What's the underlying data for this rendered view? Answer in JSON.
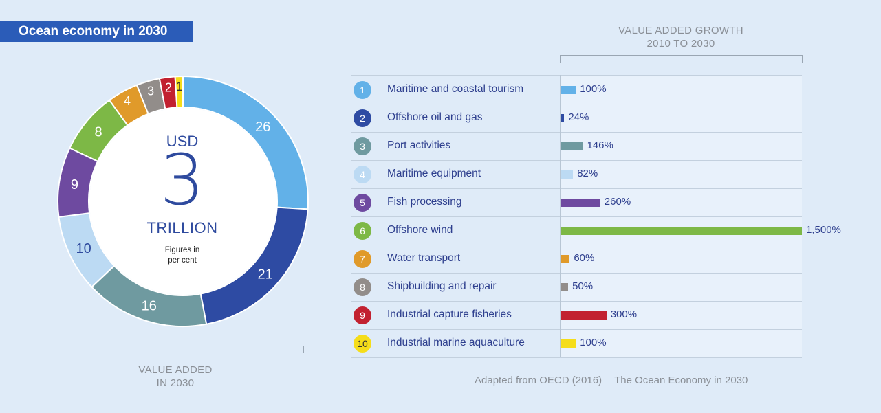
{
  "title": "Ocean economy in 2030",
  "donut_center": {
    "currency": "USD",
    "amount": "3",
    "unit": "TRILLION",
    "note_line1": "Figures in",
    "note_line2": "per cent"
  },
  "left_caption": {
    "line1": "VALUE ADDED",
    "line2": "IN 2030"
  },
  "right_caption": {
    "line1": "VALUE ADDED GROWTH",
    "line2": "2010 TO 2030"
  },
  "source": {
    "part1": "Adapted from OECD (2016)",
    "part2": "The Ocean Economy in 2030"
  },
  "chart_data": [
    {
      "type": "pie",
      "title": "Value added in 2030",
      "subtitle": "USD 3 trillion, figures in per cent",
      "categories": [
        "Maritime and coastal tourism",
        "Offshore oil and gas",
        "Port activities",
        "Maritime equipment",
        "Fish processing",
        "Offshore wind",
        "Water transport",
        "Shipbuilding and repair",
        "Industrial capture fisheries",
        "Industrial marine aquaculture"
      ],
      "values": [
        26,
        21,
        16,
        10,
        9,
        8,
        4,
        3,
        2,
        1
      ],
      "colors": [
        "#62b1e8",
        "#2e4ba3",
        "#6f9aa0",
        "#bcdaf3",
        "#6e4aa0",
        "#7db846",
        "#e09a2a",
        "#928d8a",
        "#c22130",
        "#f5dd1a"
      ],
      "label_colors": [
        "#ffffff",
        "#ffffff",
        "#ffffff",
        "#2e4a9e",
        "#ffffff",
        "#ffffff",
        "#ffffff",
        "#ffffff",
        "#ffffff",
        "#333333"
      ]
    },
    {
      "type": "bar",
      "title": "Value added growth 2010 to 2030",
      "categories": [
        "Maritime and coastal tourism",
        "Offshore oil and gas",
        "Port activities",
        "Maritime equipment",
        "Fish processing",
        "Offshore wind",
        "Water transport",
        "Shipbuilding and repair",
        "Industrial capture fisheries",
        "Industrial marine aquaculture"
      ],
      "values": [
        100,
        24,
        146,
        82,
        260,
        1500,
        60,
        50,
        300,
        100
      ],
      "value_labels": [
        "100%",
        "24%",
        "146%",
        "82%",
        "260%",
        "1,500%",
        "60%",
        "50%",
        "300%",
        "100%"
      ],
      "xlim": [
        0,
        1500
      ]
    }
  ],
  "rows": [
    {
      "num": "1",
      "label": "Maritime and coastal tourism",
      "value": "100%"
    },
    {
      "num": "2",
      "label": "Offshore oil and gas",
      "value": "24%"
    },
    {
      "num": "3",
      "label": "Port activities",
      "value": "146%"
    },
    {
      "num": "4",
      "label": "Maritime equipment",
      "value": "82%"
    },
    {
      "num": "5",
      "label": "Fish processing",
      "value": "260%"
    },
    {
      "num": "6",
      "label": "Offshore wind",
      "value": "1,500%"
    },
    {
      "num": "7",
      "label": "Water transport",
      "value": "60%"
    },
    {
      "num": "8",
      "label": "Shipbuilding and repair",
      "value": "50%"
    },
    {
      "num": "9",
      "label": "Industrial capture fisheries",
      "value": "300%"
    },
    {
      "num": "10",
      "label": "Industrial marine aquaculture",
      "value": "100%"
    }
  ]
}
